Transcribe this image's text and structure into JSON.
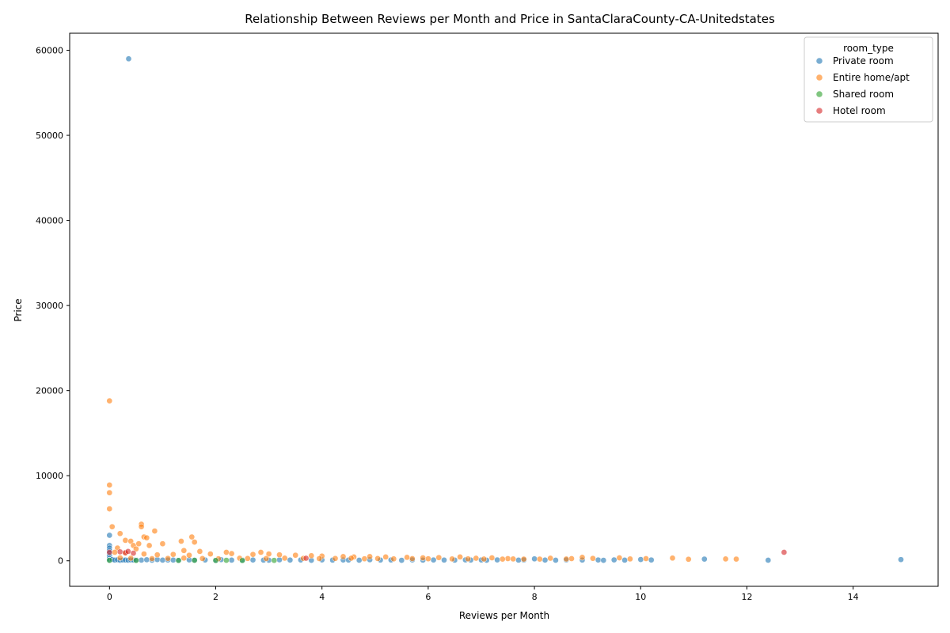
{
  "chart_data": {
    "type": "scatter",
    "title": "Relationship Between Reviews per Month and Price in SantaClaraCounty-CA-Unitedstates",
    "xlabel": "Reviews per Month",
    "ylabel": "Price",
    "xlim": [
      -0.75,
      15.6
    ],
    "ylim": [
      -3000,
      62000
    ],
    "x_ticks": [
      0,
      2,
      4,
      6,
      8,
      10,
      12,
      14
    ],
    "y_ticks": [
      0,
      10000,
      20000,
      30000,
      40000,
      50000,
      60000
    ],
    "grid": false,
    "legend": {
      "title": "room_type",
      "placement": "top-right"
    },
    "series": [
      {
        "name": "Private room",
        "color": "#1f77b4",
        "points": [
          [
            0.36,
            59000
          ],
          [
            0,
            3000
          ],
          [
            0,
            1800
          ],
          [
            0,
            1500
          ],
          [
            0,
            1200
          ],
          [
            0,
            900
          ],
          [
            0,
            600
          ],
          [
            0,
            300
          ],
          [
            0,
            100
          ],
          [
            0.05,
            150
          ],
          [
            0.1,
            80
          ],
          [
            0.15,
            120
          ],
          [
            0.2,
            60
          ],
          [
            0.25,
            100
          ],
          [
            0.3,
            90
          ],
          [
            0.35,
            70
          ],
          [
            0.4,
            110
          ],
          [
            0.45,
            85
          ],
          [
            0.5,
            95
          ],
          [
            0.6,
            75
          ],
          [
            0.7,
            120
          ],
          [
            0.8,
            65
          ],
          [
            0.9,
            140
          ],
          [
            1.0,
            80
          ],
          [
            1.1,
            100
          ],
          [
            1.2,
            90
          ],
          [
            1.3,
            70
          ],
          [
            1.5,
            110
          ],
          [
            1.6,
            85
          ],
          [
            1.8,
            95
          ],
          [
            2.0,
            60
          ],
          [
            2.1,
            130
          ],
          [
            2.3,
            75
          ],
          [
            2.5,
            90
          ],
          [
            2.7,
            100
          ],
          [
            2.9,
            80
          ],
          [
            3.0,
            70
          ],
          [
            3.2,
            115
          ],
          [
            3.4,
            85
          ],
          [
            3.6,
            95
          ],
          [
            3.8,
            60
          ],
          [
            4.0,
            110
          ],
          [
            4.2,
            80
          ],
          [
            4.4,
            100
          ],
          [
            4.5,
            90
          ],
          [
            4.7,
            70
          ],
          [
            4.9,
            120
          ],
          [
            5.1,
            85
          ],
          [
            5.3,
            95
          ],
          [
            5.5,
            60
          ],
          [
            5.7,
            110
          ],
          [
            5.9,
            80
          ],
          [
            6.1,
            100
          ],
          [
            6.3,
            90
          ],
          [
            6.5,
            75
          ],
          [
            6.7,
            105
          ],
          [
            6.8,
            85
          ],
          [
            7.0,
            95
          ],
          [
            7.1,
            65
          ],
          [
            7.3,
            110
          ],
          [
            7.7,
            80
          ],
          [
            7.8,
            100
          ],
          [
            8.0,
            230
          ],
          [
            8.2,
            90
          ],
          [
            8.4,
            70
          ],
          [
            8.6,
            110
          ],
          [
            8.9,
            85
          ],
          [
            9.2,
            95
          ],
          [
            9.3,
            60
          ],
          [
            9.5,
            110
          ],
          [
            9.7,
            80
          ],
          [
            10.0,
            150
          ],
          [
            10.2,
            100
          ],
          [
            11.2,
            200
          ],
          [
            12.4,
            70
          ],
          [
            14.9,
            140
          ]
        ]
      },
      {
        "name": "Entire home/apt",
        "color": "#ff7f0e",
        "points": [
          [
            0,
            18800
          ],
          [
            0,
            8900
          ],
          [
            0,
            8000
          ],
          [
            0,
            6100
          ],
          [
            0.05,
            4000
          ],
          [
            0.6,
            4300
          ],
          [
            0.6,
            4000
          ],
          [
            0.85,
            3500
          ],
          [
            0.2,
            3200
          ],
          [
            0.65,
            2800
          ],
          [
            0.7,
            2700
          ],
          [
            1.55,
            2800
          ],
          [
            0.3,
            2400
          ],
          [
            0.4,
            2300
          ],
          [
            0.55,
            2000
          ],
          [
            1.35,
            2300
          ],
          [
            1.6,
            2200
          ],
          [
            0.45,
            1800
          ],
          [
            0.75,
            1800
          ],
          [
            1.0,
            2000
          ],
          [
            0.15,
            1500
          ],
          [
            0.5,
            1400
          ],
          [
            1.4,
            1200
          ],
          [
            1.7,
            1100
          ],
          [
            2.2,
            1000
          ],
          [
            2.85,
            1000
          ],
          [
            0.1,
            1000
          ],
          [
            0.3,
            900
          ],
          [
            0.65,
            800
          ],
          [
            0.9,
            700
          ],
          [
            1.2,
            750
          ],
          [
            1.5,
            650
          ],
          [
            1.9,
            800
          ],
          [
            2.3,
            850
          ],
          [
            2.7,
            750
          ],
          [
            3.0,
            800
          ],
          [
            3.2,
            700
          ],
          [
            3.5,
            650
          ],
          [
            3.8,
            600
          ],
          [
            4.0,
            550
          ],
          [
            4.4,
            500
          ],
          [
            4.6,
            450
          ],
          [
            4.9,
            500
          ],
          [
            5.2,
            450
          ],
          [
            5.6,
            400
          ],
          [
            5.9,
            350
          ],
          [
            6.2,
            380
          ],
          [
            6.6,
            450
          ],
          [
            6.9,
            300
          ],
          [
            7.2,
            350
          ],
          [
            7.5,
            250
          ],
          [
            7.8,
            200
          ],
          [
            8.3,
            300
          ],
          [
            8.7,
            250
          ],
          [
            8.9,
            400
          ],
          [
            9.1,
            280
          ],
          [
            9.6,
            350
          ],
          [
            9.8,
            220
          ],
          [
            10.1,
            250
          ],
          [
            10.6,
            320
          ],
          [
            10.9,
            180
          ],
          [
            11.6,
            220
          ],
          [
            11.8,
            200
          ],
          [
            0.2,
            350
          ],
          [
            0.4,
            300
          ],
          [
            0.8,
            250
          ],
          [
            1.1,
            280
          ],
          [
            1.4,
            320
          ],
          [
            1.75,
            260
          ],
          [
            2.05,
            240
          ],
          [
            2.45,
            300
          ],
          [
            2.6,
            270
          ],
          [
            2.95,
            260
          ],
          [
            3.3,
            310
          ],
          [
            3.65,
            280
          ],
          [
            3.95,
            250
          ],
          [
            4.25,
            270
          ],
          [
            4.55,
            300
          ],
          [
            4.8,
            240
          ],
          [
            5.05,
            260
          ],
          [
            5.35,
            230
          ],
          [
            5.7,
            250
          ],
          [
            6.0,
            240
          ],
          [
            6.45,
            220
          ],
          [
            6.75,
            230
          ],
          [
            7.05,
            210
          ],
          [
            7.4,
            200
          ],
          [
            7.6,
            220
          ],
          [
            8.1,
            200
          ],
          [
            8.6,
            210
          ]
        ]
      },
      {
        "name": "Shared room",
        "color": "#2ca02c",
        "points": [
          [
            0,
            50
          ],
          [
            0.5,
            40
          ],
          [
            1.3,
            45
          ],
          [
            1.6,
            60
          ],
          [
            2.0,
            40
          ],
          [
            2.2,
            55
          ],
          [
            2.5,
            35
          ],
          [
            3.1,
            50
          ]
        ]
      },
      {
        "name": "Hotel room",
        "color": "#d62728",
        "points": [
          [
            0,
            1000
          ],
          [
            0.2,
            1050
          ],
          [
            0.3,
            950
          ],
          [
            0.35,
            1100
          ],
          [
            0.45,
            900
          ],
          [
            3.7,
            300
          ],
          [
            12.7,
            1000
          ]
        ]
      }
    ]
  }
}
